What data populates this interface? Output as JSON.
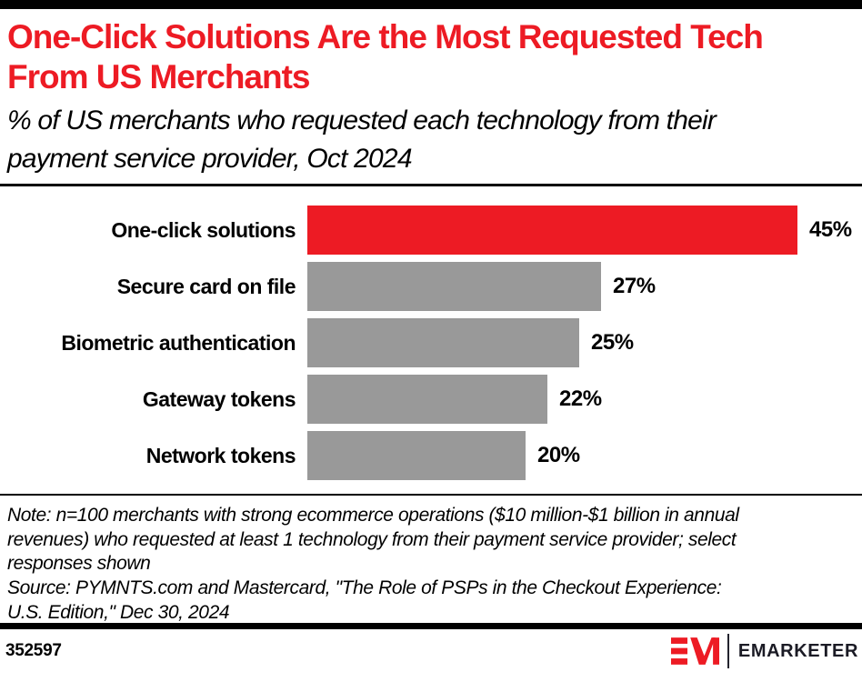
{
  "page": {
    "title": "One-Click Solutions Are the Most Requested Tech From US Merchants",
    "subtitle": "% of US merchants who requested each technology from their payment service provider, Oct 2024",
    "note": "Note: n=100 merchants with strong ecommerce operations ($10 million-$1 billion in annual revenues) who requested at least 1 technology from their payment service provider; select responses shown",
    "source": "Source: PYMNTS.com and Mastercard, \"The Role of PSPs in the Checkout Experience: U.S. Edition,\" Dec 30, 2024",
    "chart_id": "352597",
    "brand_wordmark": "EMARKETER"
  },
  "colors": {
    "accent_red": "#ED1B24",
    "bar_gray": "#999999",
    "rule_black": "#000000",
    "wordmark_dark": "#1B1B25"
  },
  "icons": {
    "logo_mark": "emarketer-em-monogram"
  },
  "chart_data": {
    "type": "bar",
    "orientation": "horizontal",
    "title": "One-Click Solutions Are the Most Requested Tech From US Merchants",
    "subtitle": "% of US merchants who requested each technology from their payment service provider, Oct 2024",
    "categories": [
      "One-click solutions",
      "Secure card on file",
      "Biometric authentication",
      "Gateway tokens",
      "Network tokens"
    ],
    "values": [
      45,
      27,
      25,
      22,
      20
    ],
    "value_suffix": "%",
    "axis_max": 45,
    "xlabel": "",
    "ylabel": "",
    "grid": false,
    "legend": false,
    "data_labels": "outside-end",
    "highlight_index": 0,
    "highlight_color": "#ED1B24",
    "bar_color": "#999999"
  }
}
